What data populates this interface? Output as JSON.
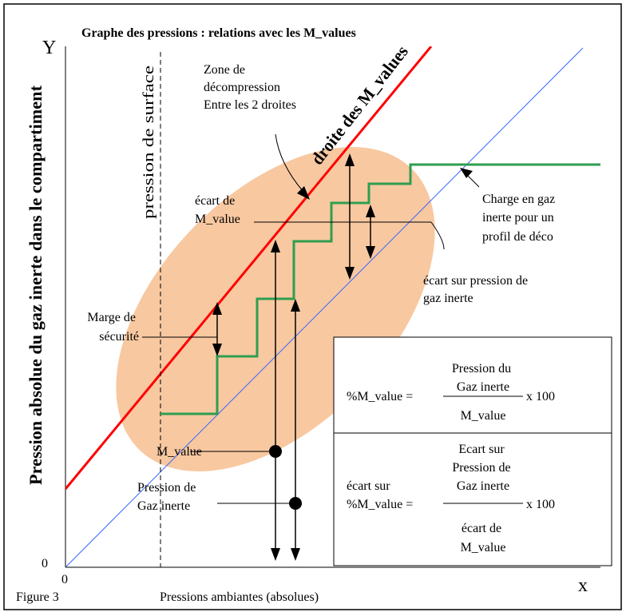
{
  "title": "Graphe des pressions : relations avec les M_values",
  "y_axis": {
    "letter": "Y",
    "label": "Pression absolue du gaz inerte dans le compartiment",
    "origin": "0"
  },
  "x_axis": {
    "letter": "x",
    "label": "Pressions ambiantes (absolues)",
    "origin": "0"
  },
  "figure_label": "Figure 3",
  "surface_label": "pression de surface",
  "m_values_line_label": "droite des M_values",
  "zone_label": [
    "Zone de",
    "décompression",
    "Entre les 2 droites"
  ],
  "ecart_m_value_label": [
    "écart de",
    "M_value"
  ],
  "charge_label": [
    "Charge en gaz",
    "inerte  pour un",
    "profil de déco"
  ],
  "ecart_pression_label": [
    "écart sur pression de",
    "gaz inerte"
  ],
  "marge_label": [
    "Marge de",
    "sécurité"
  ],
  "m_value_point_label": "M_value",
  "pression_gaz_label": [
    "Pression de",
    "Gaz inerte"
  ],
  "formula1": {
    "lhs": "%M_value =",
    "numerator": [
      "Pression du",
      "Gaz inerte"
    ],
    "multiplier": "x 100",
    "denominator": "M_value"
  },
  "formula2": {
    "lhs": [
      "écart sur",
      "%M_value ="
    ],
    "numerator": [
      "Ecart sur",
      "Pression de",
      "Gaz inerte"
    ],
    "multiplier": "x 100",
    "denominator": [
      "écart de",
      "M_value"
    ]
  },
  "colors": {
    "m_values_line": "#ff0000",
    "ambient_line": "#3366ff",
    "profile_line": "#2e9e4f",
    "zone_fill": "#f8c8a0"
  }
}
